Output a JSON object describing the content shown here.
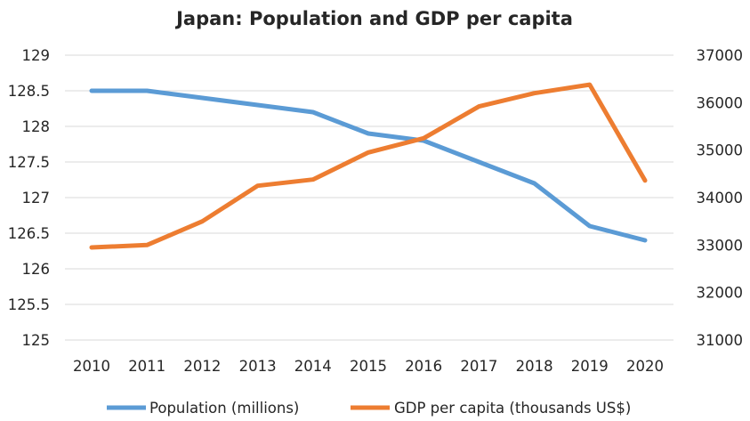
{
  "chart_data": {
    "type": "line",
    "title": "Japan: Population and GDP per capita",
    "categories": [
      "2010",
      "2011",
      "2012",
      "2013",
      "2014",
      "2015",
      "2016",
      "2017",
      "2018",
      "2019",
      "2020"
    ],
    "y_left": {
      "min": 125,
      "max": 129,
      "ticks": [
        "125",
        "125.5",
        "126",
        "126.5",
        "127",
        "127.5",
        "128",
        "128.5",
        "129"
      ]
    },
    "y_right": {
      "min": 31000,
      "max": 37000,
      "ticks": [
        "31000",
        "32000",
        "33000",
        "34000",
        "35000",
        "36000",
        "37000"
      ]
    },
    "grid": true,
    "legend_position": "bottom",
    "series": [
      {
        "name": "Population (millions)",
        "axis": "left",
        "color": "#5b9bd5",
        "values": [
          128.5,
          128.5,
          128.4,
          128.3,
          128.2,
          127.9,
          127.8,
          127.5,
          127.2,
          126.6,
          126.4
        ]
      },
      {
        "name": "GDP per capita (thousands US$)",
        "axis": "right",
        "color": "#ed7d31",
        "values": [
          32950,
          33000,
          33500,
          34250,
          34380,
          34950,
          35250,
          35920,
          36200,
          36380,
          34360
        ]
      }
    ]
  }
}
